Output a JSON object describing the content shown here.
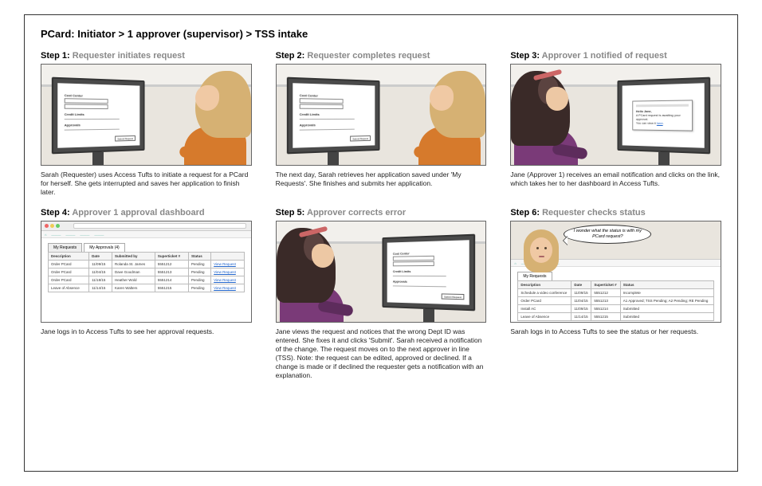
{
  "title": "PCard: Initiator  >  1 approver (supervisor)  > TSS intake",
  "steps": {
    "s1": {
      "label": "Step 1:",
      "sub": "Requester initiates request",
      "caption": "Sarah (Requester) uses Access Tufts to initiate a request for a PCard for herself. She gets interrupted and saves her application to finish later."
    },
    "s2": {
      "label": "Step 2:",
      "sub": "Requester completes request",
      "caption": "The next day, Sarah retrieves her application saved under 'My Requests'. She finishes and submits her application."
    },
    "s3": {
      "label": "Step 3:",
      "sub": "Approver 1 notified of request",
      "caption": "Jane (Approver 1) receives an email notification and clicks on the link, which takes her to her dashboard in Access Tufts."
    },
    "s4": {
      "label": "Step 4:",
      "sub": "Approver 1 approval dashboard",
      "caption": "Jane logs in to Access Tufts to see her approval requests."
    },
    "s5": {
      "label": "Step 5:",
      "sub": "Approver corrects error",
      "caption": "Jane views the request and notices that the wrong Dept ID was entered. She fixes it and clicks 'Submit'. Sarah received a notification of the change. The request moves on to the next approver in line (TSS). Note: the request can be edited, approved or declined. If a change is made or if declined the requester gets a notification with an explanation."
    },
    "s6": {
      "label": "Step 6:",
      "sub": "Requester checks status",
      "caption": "Sarah logs in to Access Tufts to see the status or her requests."
    }
  },
  "form": {
    "h1": "Cost Center",
    "h2": "Credit Limits",
    "h3": "Approvals",
    "btn": "Submit Request"
  },
  "email": {
    "title": "Hello Jane,",
    "body": "A PCard request is awaiting your approval.",
    "link": "here"
  },
  "dash4": {
    "tab1": "My Requests",
    "tab2": "My Approvals (4)",
    "cols": [
      "Description",
      "Date",
      "Submitted by",
      "Superticket #",
      "Status",
      ""
    ],
    "rows": [
      [
        "Order PCard",
        "11/09/15",
        "Rolanda St. James",
        "5551212",
        "Pending",
        "View Request"
      ],
      [
        "Order PCard",
        "11/04/15",
        "Dave Goodman",
        "5551213",
        "Pending",
        "View Request"
      ],
      [
        "Order PCard",
        "11/18/15",
        "Heather Wold",
        "5551214",
        "Pending",
        "View Request"
      ],
      [
        "Leave of Absence",
        "11/14/15",
        "Karen Walters",
        "5551215",
        "Pending",
        "View Request"
      ]
    ]
  },
  "bubble": "I wonder what the status is with my PCard request?",
  "dash6": {
    "tab1": "My Requests",
    "cols": [
      "Description",
      "Date",
      "Superticket #",
      "Status"
    ],
    "rows": [
      [
        "Schedule a video conference",
        "11/09/15",
        "5551212",
        "Incomplete"
      ],
      [
        "Order PCard",
        "11/04/15",
        "5551213",
        "A1 Approved; TSS Pending; A2 Pending; RE Pending"
      ],
      [
        "Install AC",
        "11/09/15",
        "5551214",
        "Submitted"
      ],
      [
        "Leave of Absence",
        "11/14/15",
        "5551215",
        "Submitted"
      ]
    ]
  },
  "colors": {
    "sarah_hair": "#d6b173",
    "sarah_skin": "#f0c9a4",
    "sarah_top": "#d67a2c",
    "jane_hair": "#3a2a28",
    "jane_top": "#7a3a78",
    "jane_band": "#c66"
  }
}
